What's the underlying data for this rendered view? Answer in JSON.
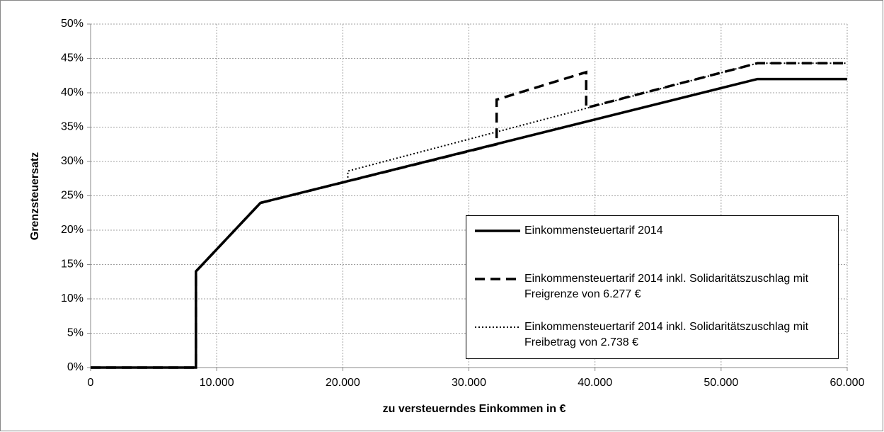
{
  "chart_data": {
    "type": "line",
    "xlabel": "zu versteuerndes Einkommen in €",
    "ylabel": "Grenzsteuersatz",
    "xlim": [
      0,
      60000
    ],
    "xticks": [
      0,
      {
        "value": 10000,
        "label": "10.000"
      },
      {
        "value": 20000,
        "label": "20.000"
      },
      {
        "value": 30000,
        "label": "30.000"
      },
      {
        "value": 40000,
        "label": "40.000"
      },
      {
        "value": 50000,
        "label": "50.000"
      },
      {
        "value": 60000,
        "label": "60.000"
      }
    ],
    "ylim": [
      0,
      50
    ],
    "yticks": [
      {
        "value": 0,
        "label": "0%"
      },
      {
        "value": 5,
        "label": "5%"
      },
      {
        "value": 10,
        "label": "10%"
      },
      {
        "value": 15,
        "label": "15%"
      },
      {
        "value": 20,
        "label": "20%"
      },
      {
        "value": 25,
        "label": "25%"
      },
      {
        "value": 30,
        "label": "30%"
      },
      {
        "value": 35,
        "label": "35%"
      },
      {
        "value": 40,
        "label": "40%"
      },
      {
        "value": 45,
        "label": "45%"
      },
      {
        "value": 50,
        "label": "50%"
      }
    ],
    "grid": true,
    "legend": "lower right",
    "series": [
      {
        "name": "Einkommensteuertarif 2014",
        "color": "#000000",
        "style": "solid",
        "x": [
          0,
          8354,
          8354,
          13469,
          52881,
          60000
        ],
        "values": [
          0,
          0,
          14,
          23.97,
          42,
          42
        ]
      },
      {
        "name": "Einkommensteuertarif 2014 inkl. Solidaritätszuschlag mit Freigrenze von 6.277 €",
        "color": "#000000",
        "style": "dashed",
        "x": [
          0,
          8354,
          8354,
          13469,
          32200,
          32200,
          39300,
          39300,
          52881,
          60000
        ],
        "values": [
          0,
          0,
          14,
          23.97,
          32.5,
          39,
          43,
          37.8,
          44.3,
          44.3
        ]
      },
      {
        "name": "Einkommensteuertarif 2014 inkl. Solidaritätszuschlag mit Freibetrag von 2.738 €",
        "color": "#000000",
        "style": "dotted",
        "x": [
          0,
          8354,
          8354,
          13469,
          20400,
          20400,
          52881,
          60000
        ],
        "values": [
          0,
          0,
          14,
          23.97,
          27.1,
          28.6,
          44.3,
          44.3
        ]
      }
    ]
  }
}
